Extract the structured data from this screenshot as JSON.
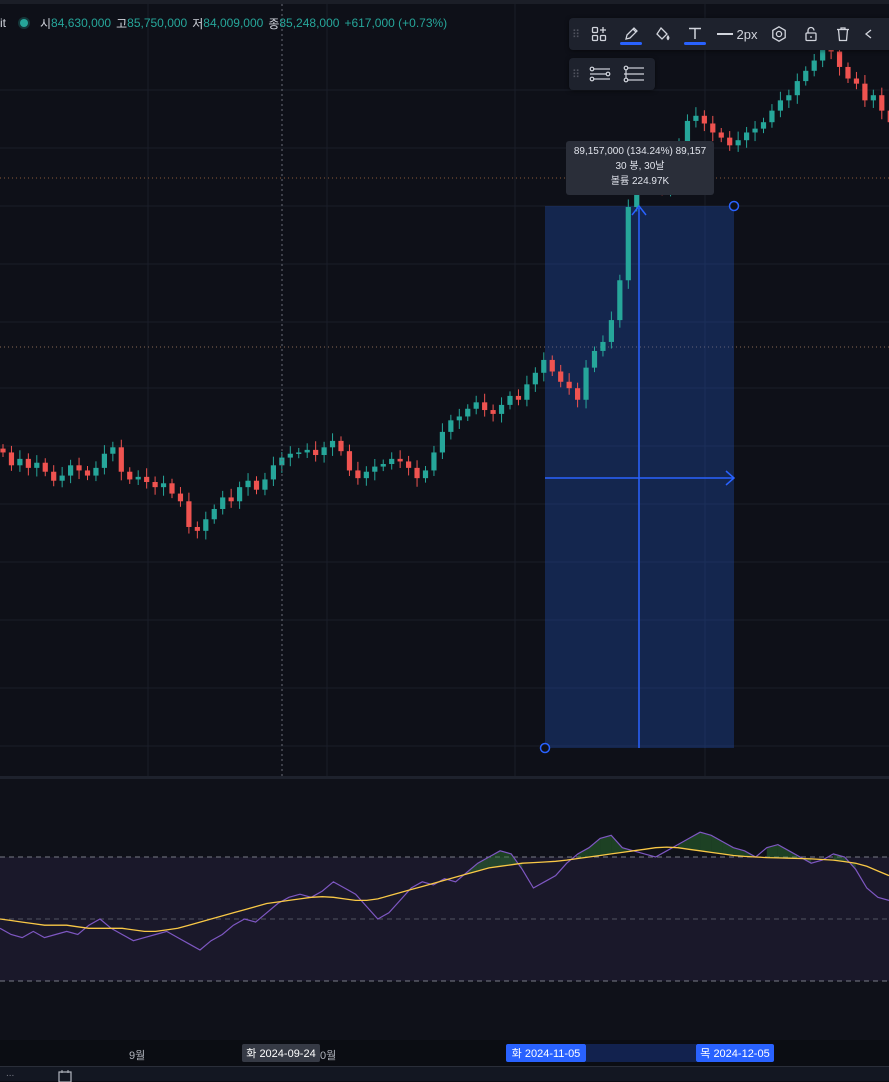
{
  "legend": {
    "symbol": "it",
    "open_key": "시",
    "open_value": "84,630,000",
    "high_key": "고",
    "high_value": "85,750,000",
    "low_key": "저",
    "low_value": "84,009,000",
    "close_key": "종",
    "close_value": "85,248,000",
    "change_value": "+617,000 (+0.73%)"
  },
  "toolbar": {
    "line_width_label": "2px",
    "colors": {
      "underline": "#2962ff"
    },
    "icons": [
      "drag-handle-icon",
      "add-to-group-icon",
      "pencil-icon",
      "fill-bucket-icon",
      "text-icon",
      "line-width-icon",
      "settings-icon",
      "lock-icon",
      "trash-icon",
      "more-icon"
    ],
    "sub_icons": [
      "drag-handle-icon",
      "visual-order-icon",
      "object-tree-icon"
    ]
  },
  "measure": {
    "line1": "89,157,000 (134.24%) 89,157",
    "line2": "30 봉, 30날",
    "line3": "볼륨 224.97K"
  },
  "time_axis": {
    "labels": [
      "9월",
      "0월"
    ],
    "crosshair_time": "화 2024-09-24",
    "range_start": "화 2024-11-05",
    "range_end": "목 2024-12-05"
  },
  "bottom": {
    "label": "...",
    "calendar_icon": "calendar-icon"
  },
  "colors": {
    "up": "#26a69a",
    "down": "#ef5350",
    "rsi_line": "#7e57c2",
    "rsi_ma": "#f9c846",
    "measure_fill": "#1f4fb5",
    "measure_line": "#2962ff"
  },
  "chart_data": [
    {
      "type": "candlestick",
      "description_values": "approximate close prices read from price chart; rendered as candles",
      "closes": [
        63,
        62,
        62.5,
        61.8,
        62.2,
        61.5,
        60.8,
        61.2,
        62,
        61.6,
        61.2,
        61.8,
        62.9,
        63.4,
        61.5,
        60.9,
        61.1,
        60.7,
        60.3,
        60.6,
        59.8,
        59.2,
        57.2,
        56.9,
        57.8,
        58.6,
        59.5,
        59.2,
        60.3,
        60.8,
        60.1,
        60.9,
        62.0,
        62.6,
        62.9,
        63.0,
        63.2,
        62.8,
        63.4,
        63.9,
        63.1,
        61.6,
        61.0,
        61.5,
        61.9,
        62.1,
        62.5,
        62.3,
        61.8,
        61.0,
        61.6,
        63.0,
        64.6,
        65.5,
        65.8,
        66.4,
        66.9,
        66.3,
        66.0,
        66.7,
        67.4,
        67.1,
        68.3,
        69.2,
        70.2,
        69.3,
        68.5,
        68.0,
        67.1,
        69.6,
        70.9,
        71.6,
        73.3,
        76.4,
        82.1,
        83.9,
        84.5,
        84.0,
        83.6,
        85.2,
        87.1,
        88.8,
        89.2,
        88.6,
        87.9,
        87.5,
        86.9,
        87.3,
        87.9,
        88.2,
        88.7,
        89.6,
        90.4,
        90.8,
        91.9,
        92.7,
        93.5,
        95.6,
        94.2,
        93.0,
        92.1,
        91.7,
        90.4,
        90.8,
        89.6,
        88.7
      ],
      "candle_unit": "relative"
    },
    {
      "type": "line",
      "title": "",
      "series": [
        {
          "values": [
            47,
            45,
            44,
            46,
            44,
            45,
            46,
            45,
            48,
            50,
            47,
            45,
            43,
            44,
            45,
            46,
            44,
            42,
            40,
            43,
            45,
            48,
            50,
            49,
            52,
            55,
            57,
            58,
            57,
            59,
            62,
            60,
            58,
            54,
            50,
            52,
            56,
            60,
            62,
            61,
            63,
            62,
            65,
            68,
            70,
            72,
            71,
            66,
            60,
            62,
            64,
            68,
            71,
            73,
            76,
            77,
            73,
            72,
            71,
            70,
            72,
            74,
            76,
            78,
            77,
            75,
            73,
            72,
            70,
            73,
            74,
            72,
            70,
            68,
            69,
            71,
            70,
            66,
            60,
            57,
            56
          ]
        },
        {
          "values": [
            50,
            49.5,
            49,
            48.5,
            48,
            48,
            48,
            47.5,
            47,
            47,
            47,
            47,
            46.5,
            46,
            46,
            46.5,
            47,
            48,
            49,
            50,
            51,
            52,
            53,
            54,
            55,
            55.5,
            56,
            56.5,
            57,
            57.2,
            57,
            56.5,
            56,
            56,
            56.5,
            57.5,
            58.5,
            59.5,
            60.5,
            61.5,
            62.5,
            63.5,
            64.5,
            65.5,
            66.5,
            67,
            67.5,
            68,
            68.2,
            68.4,
            68.6,
            69,
            69.5,
            70,
            70.5,
            71,
            71.5,
            72,
            72.5,
            73,
            73.2,
            73,
            72.5,
            72,
            71.5,
            71,
            70.5,
            70.2,
            70,
            69.8,
            69.7,
            69.6,
            69.5,
            69.4,
            69.2,
            69,
            68.5,
            68,
            67,
            65.5,
            64
          ]
        }
      ],
      "hlines": [
        70,
        50,
        30
      ]
    }
  ]
}
